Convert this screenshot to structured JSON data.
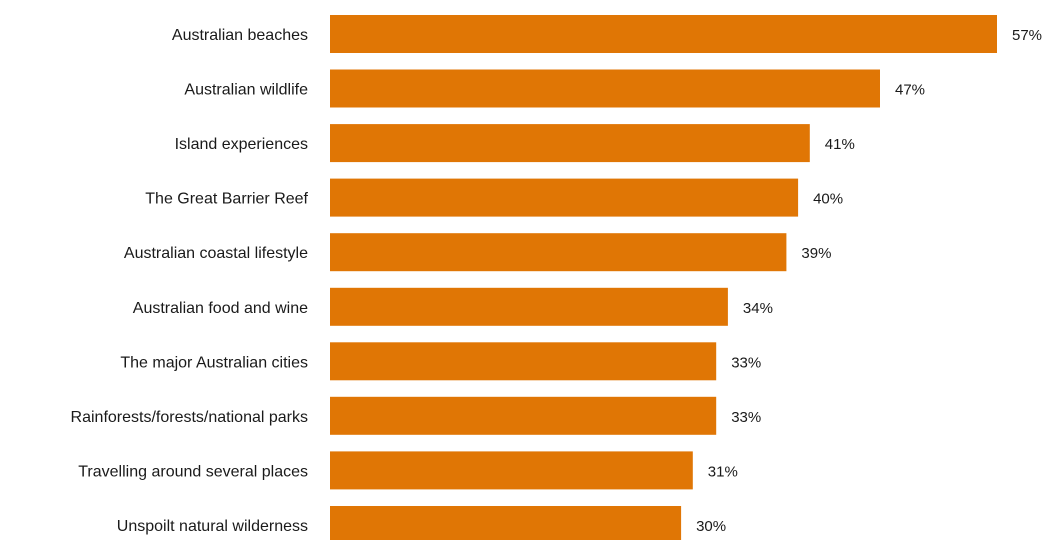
{
  "colors": {
    "bar": "#e07605",
    "text": "#1a1a1a",
    "background": "#ffffff"
  },
  "chart_data": {
    "type": "bar",
    "orientation": "horizontal",
    "title": "",
    "xlabel": "",
    "ylabel": "",
    "xlim": [
      0,
      57
    ],
    "grid": false,
    "legend": "none",
    "categories": [
      "Australian beaches",
      "Australian wildlife",
      "Island experiences",
      "The Great Barrier Reef",
      "Australian coastal lifestyle",
      "Australian food and wine",
      "The major Australian cities",
      "Rainforests/forests/national  parks",
      "Travelling around several places",
      "Unspoilt natural wilderness"
    ],
    "values": [
      57,
      47,
      41,
      40,
      39,
      34,
      33,
      33,
      31,
      30
    ],
    "value_labels": [
      "57%",
      "47%",
      "41%",
      "40%",
      "39%",
      "34%",
      "33%",
      "33%",
      "31%",
      "30%"
    ]
  }
}
